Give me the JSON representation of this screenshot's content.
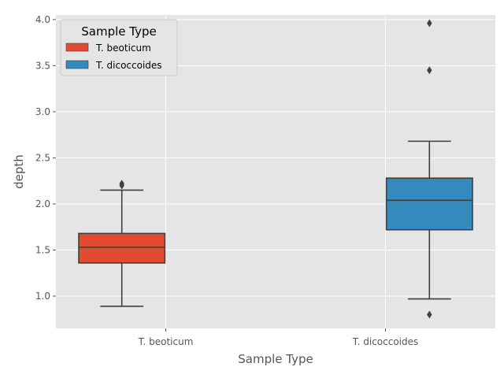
{
  "chart_data": {
    "type": "box",
    "title": "",
    "xlabel": "Sample Type",
    "ylabel": "depth",
    "ylim": [
      0.65,
      4.05
    ],
    "yticks": [
      "1.0",
      "1.5",
      "2.0",
      "2.5",
      "3.0",
      "3.5",
      "4.0"
    ],
    "grid": true,
    "legend": {
      "title": "Sample Type",
      "placement": "top-left"
    },
    "categories": [
      "T. beoticum",
      "T. dicoccoides"
    ],
    "series": [
      {
        "name": "T. beoticum",
        "category": "T. beoticum",
        "color": "#E24A33",
        "whisker_low": 0.89,
        "q1": 1.36,
        "median": 1.53,
        "q3": 1.68,
        "whisker_high": 2.15,
        "outliers": [
          2.2,
          2.22
        ]
      },
      {
        "name": "T. dicoccoides",
        "category": "T. dicoccoides",
        "color": "#348ABD",
        "whisker_low": 0.97,
        "q1": 1.72,
        "median": 2.04,
        "q3": 2.28,
        "whisker_high": 2.68,
        "outliers": [
          0.8,
          3.45,
          3.96
        ]
      }
    ]
  }
}
